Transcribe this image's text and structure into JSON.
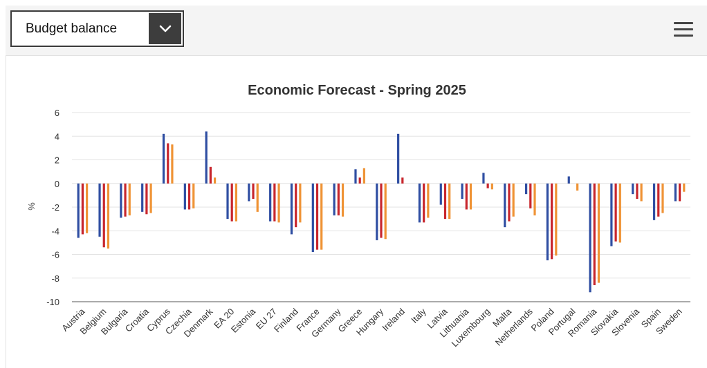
{
  "selector": {
    "value": "Budget balance"
  },
  "icons": {
    "dropdown": "chevron-down-icon",
    "menu": "hamburger-menu-icon"
  },
  "chart_data": {
    "type": "bar",
    "title": "Economic Forecast - Spring 2025",
    "xlabel": "",
    "ylabel": "%",
    "ylim": [
      -10,
      6
    ],
    "yticks": [
      6,
      4,
      2,
      0,
      -2,
      -4,
      -6,
      -8,
      -10
    ],
    "grid": true,
    "categories": [
      "Austria",
      "Belgium",
      "Bulgaria",
      "Croatia",
      "Cyprus",
      "Czechia",
      "Denmark",
      "EA 20",
      "Estonia",
      "EU 27",
      "Finland",
      "France",
      "Germany",
      "Greece",
      "Hungary",
      "Ireland",
      "Italy",
      "Latvia",
      "Lithuania",
      "Luxembourg",
      "Malta",
      "Netherlands",
      "Poland",
      "Portugal",
      "Romania",
      "Slovakia",
      "Slovenia",
      "Spain",
      "Sweden"
    ],
    "series": [
      {
        "color": "#2f4ea2",
        "values": [
          -4.6,
          -4.5,
          -2.9,
          -2.4,
          4.2,
          -2.2,
          4.4,
          -3.0,
          -1.5,
          -3.2,
          -4.3,
          -5.8,
          -2.7,
          1.2,
          -4.8,
          4.2,
          -3.3,
          -1.8,
          -1.3,
          0.9,
          -3.7,
          -0.9,
          -6.5,
          0.6,
          -9.2,
          -5.3,
          -0.9,
          -3.1,
          -1.5
        ]
      },
      {
        "color": "#c8262d",
        "values": [
          -4.3,
          -5.4,
          -2.8,
          -2.6,
          3.4,
          -2.2,
          1.4,
          -3.2,
          -1.3,
          -3.2,
          -3.7,
          -5.6,
          -2.7,
          0.5,
          -4.6,
          0.5,
          -3.3,
          -3.0,
          -2.2,
          -0.4,
          -3.2,
          -2.1,
          -6.4,
          0.0,
          -8.6,
          -4.9,
          -1.3,
          -2.8,
          -1.5
        ]
      },
      {
        "color": "#ef9335",
        "values": [
          -4.2,
          -5.5,
          -2.7,
          -2.5,
          3.3,
          -2.1,
          0.5,
          -3.2,
          -2.4,
          -3.3,
          -3.3,
          -5.6,
          -2.8,
          1.3,
          -4.7,
          0.0,
          -2.9,
          -3.0,
          -2.2,
          -0.5,
          -2.8,
          -2.7,
          -6.1,
          -0.6,
          -8.4,
          -5.0,
          -1.5,
          -2.5,
          -0.7
        ]
      }
    ]
  }
}
